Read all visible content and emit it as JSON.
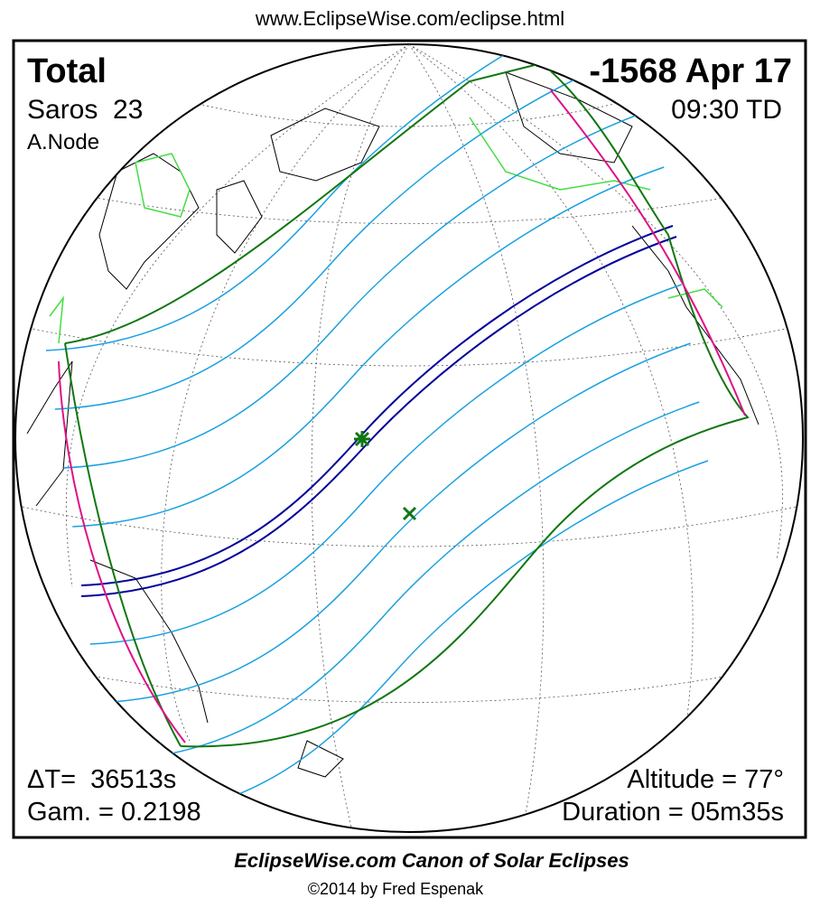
{
  "header": {
    "url": "www.EclipseWise.com/eclipse.html"
  },
  "panel": {
    "eclipse_type": "Total",
    "date": "-1568 Apr 17",
    "saros": "Saros  23",
    "time": "09:30 TD",
    "node": "A.Node",
    "delta_t": "ΔT=  36513s",
    "gamma": "Gam. = 0.2198",
    "altitude": "Altitude = 77°",
    "duration": "Duration = 05m35s"
  },
  "footer": {
    "title": "EclipseWise.com Canon of Solar Eclipses",
    "credit": "©2014 by Fred Espenak"
  }
}
